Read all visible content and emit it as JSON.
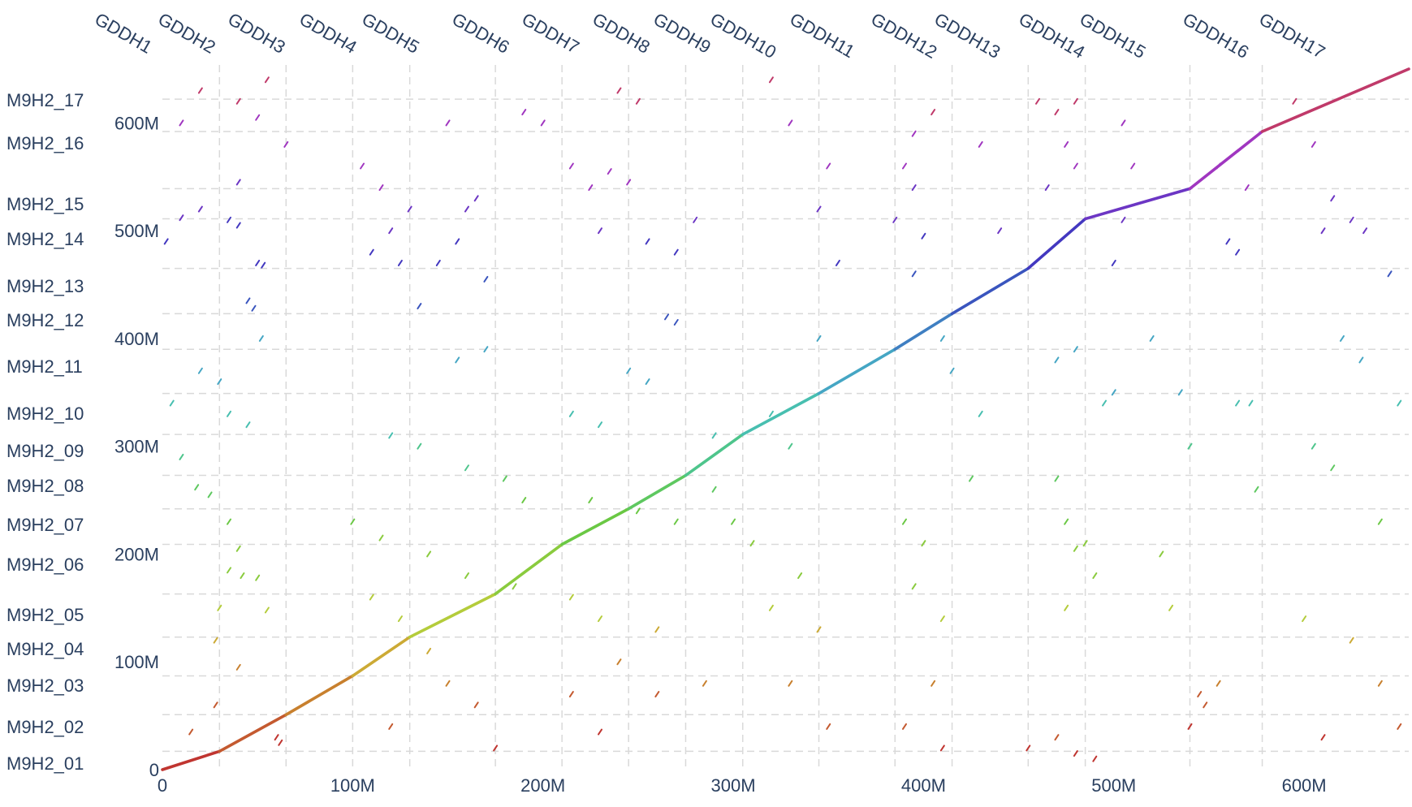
{
  "chart_data": {
    "type": "scatter",
    "x_tick_labels": [
      "0",
      "100M",
      "200M",
      "300M",
      "400M",
      "500M",
      "600M"
    ],
    "y_tick_labels": [
      "0",
      "100M",
      "200M",
      "300M",
      "400M",
      "500M",
      "600M"
    ],
    "x_ticks": [
      0,
      100,
      200,
      300,
      400,
      500,
      600
    ],
    "y_ticks": [
      0,
      100,
      200,
      300,
      400,
      500,
      600
    ],
    "xlim": [
      0,
      655
    ],
    "ylim": [
      0,
      650
    ],
    "grid": true,
    "x_chromosomes": [
      {
        "name": "GDDH1",
        "start": 0
      },
      {
        "name": "GDDH2",
        "start": 30
      },
      {
        "name": "GDDH3",
        "start": 65
      },
      {
        "name": "GDDH4",
        "start": 100
      },
      {
        "name": "GDDH5",
        "start": 130
      },
      {
        "name": "GDDH6",
        "start": 175
      },
      {
        "name": "GDDH7",
        "start": 210
      },
      {
        "name": "GDDH8",
        "start": 245
      },
      {
        "name": "GDDH9",
        "start": 275
      },
      {
        "name": "GDDH10",
        "start": 305
      },
      {
        "name": "GDDH11",
        "start": 345
      },
      {
        "name": "GDDH12",
        "start": 385
      },
      {
        "name": "GDDH13",
        "start": 415
      },
      {
        "name": "GDDH14",
        "start": 455
      },
      {
        "name": "GDDH15",
        "start": 485
      },
      {
        "name": "GDDH16",
        "start": 540
      },
      {
        "name": "GDDH17",
        "start": 578
      }
    ],
    "y_chromosomes": [
      {
        "name": "M9H2_01",
        "mid": 0
      },
      {
        "name": "M9H2_02",
        "mid": 34
      },
      {
        "name": "M9H2_03",
        "mid": 72
      },
      {
        "name": "M9H2_04",
        "mid": 108
      },
      {
        "name": "M9H2_05",
        "mid": 140
      },
      {
        "name": "M9H2_06",
        "mid": 188
      },
      {
        "name": "M9H2_07",
        "mid": 223
      },
      {
        "name": "M9H2_08",
        "mid": 259
      },
      {
        "name": "M9H2_09",
        "mid": 291
      },
      {
        "name": "M9H2_10",
        "mid": 327
      },
      {
        "name": "M9H2_11",
        "mid": 370
      },
      {
        "name": "M9H2_12",
        "mid": 413
      },
      {
        "name": "M9H2_13",
        "mid": 445
      },
      {
        "name": "M9H2_14",
        "mid": 490
      },
      {
        "name": "M9H2_15",
        "mid": 523
      },
      {
        "name": "M9H2_16",
        "mid": 580
      },
      {
        "name": "M9H2_17",
        "mid": 610
      }
    ],
    "y_boundaries": [
      17,
      51,
      87,
      123,
      163,
      209,
      242,
      273,
      311,
      349,
      390,
      423,
      465,
      511,
      539,
      592,
      622
    ],
    "diagonal_segments": [
      {
        "x0": 0,
        "y0": 0,
        "x1": 30,
        "y1": 17,
        "color": "#c03530"
      },
      {
        "x0": 30,
        "y0": 17,
        "x1": 65,
        "y1": 51,
        "color": "#c45a30"
      },
      {
        "x0": 65,
        "y0": 51,
        "x1": 100,
        "y1": 87,
        "color": "#c8802e"
      },
      {
        "x0": 100,
        "y0": 87,
        "x1": 130,
        "y1": 123,
        "color": "#ccaa35"
      },
      {
        "x0": 130,
        "y0": 123,
        "x1": 175,
        "y1": 163,
        "color": "#b4cc3b"
      },
      {
        "x0": 175,
        "y0": 163,
        "x1": 210,
        "y1": 209,
        "color": "#8acb3e"
      },
      {
        "x0": 210,
        "y0": 209,
        "x1": 245,
        "y1": 242,
        "color": "#6ac844"
      },
      {
        "x0": 245,
        "y0": 242,
        "x1": 275,
        "y1": 273,
        "color": "#5ec860"
      },
      {
        "x0": 275,
        "y0": 273,
        "x1": 305,
        "y1": 311,
        "color": "#4ec58c"
      },
      {
        "x0": 305,
        "y0": 311,
        "x1": 345,
        "y1": 349,
        "color": "#48bfb0"
      },
      {
        "x0": 345,
        "y0": 349,
        "x1": 385,
        "y1": 390,
        "color": "#45a6c4"
      },
      {
        "x0": 385,
        "y0": 390,
        "x1": 415,
        "y1": 423,
        "color": "#3f7fc2"
      },
      {
        "x0": 415,
        "y0": 423,
        "x1": 455,
        "y1": 465,
        "color": "#3a55be"
      },
      {
        "x0": 455,
        "y0": 465,
        "x1": 485,
        "y1": 511,
        "color": "#4338c0"
      },
      {
        "x0": 485,
        "y0": 511,
        "x1": 540,
        "y1": 539,
        "color": "#6c36c4"
      },
      {
        "x0": 540,
        "y0": 539,
        "x1": 578,
        "y1": 592,
        "color": "#a036c0"
      },
      {
        "x0": 578,
        "y0": 592,
        "x1": 655,
        "y1": 650,
        "color": "#c03a6a"
      }
    ],
    "scatter_points": [
      [
        2,
        490,
        "#4338c0"
      ],
      [
        10,
        512,
        "#6c36c4"
      ],
      [
        20,
        520,
        "#6c36c4"
      ],
      [
        35,
        510,
        "#4338c0"
      ],
      [
        40,
        505,
        "#4338c0"
      ],
      [
        50,
        470,
        "#4338c0"
      ],
      [
        53,
        468,
        "#4338c0"
      ],
      [
        45,
        435,
        "#3a55be"
      ],
      [
        48,
        428,
        "#3a55be"
      ],
      [
        52,
        400,
        "#45a6c4"
      ],
      [
        20,
        370,
        "#45a6c4"
      ],
      [
        30,
        360,
        "#45a6c4"
      ],
      [
        5,
        340,
        "#48bfb0"
      ],
      [
        35,
        330,
        "#48bfb0"
      ],
      [
        45,
        320,
        "#48bfb0"
      ],
      [
        10,
        290,
        "#4ec58c"
      ],
      [
        18,
        262,
        "#5ec860"
      ],
      [
        25,
        255,
        "#5ec860"
      ],
      [
        35,
        230,
        "#6ac844"
      ],
      [
        40,
        205,
        "#8acb3e"
      ],
      [
        35,
        185,
        "#8acb3e"
      ],
      [
        42,
        180,
        "#8acb3e"
      ],
      [
        50,
        178,
        "#8acb3e"
      ],
      [
        30,
        150,
        "#b4cc3b"
      ],
      [
        55,
        148,
        "#b4cc3b"
      ],
      [
        28,
        120,
        "#ccaa35"
      ],
      [
        40,
        95,
        "#c8802e"
      ],
      [
        15,
        35,
        "#c45a30"
      ],
      [
        28,
        60,
        "#c45a30"
      ],
      [
        60,
        30,
        "#c03530"
      ],
      [
        62,
        25,
        "#c03530"
      ],
      [
        20,
        630,
        "#c03a6a"
      ],
      [
        40,
        620,
        "#c03a6a"
      ],
      [
        55,
        640,
        "#c03a6a"
      ],
      [
        10,
        600,
        "#a036c0"
      ],
      [
        50,
        605,
        "#a036c0"
      ],
      [
        65,
        580,
        "#a036c0"
      ],
      [
        40,
        545,
        "#6c36c4"
      ],
      [
        105,
        560,
        "#a036c0"
      ],
      [
        115,
        540,
        "#a036c0"
      ],
      [
        130,
        520,
        "#6c36c4"
      ],
      [
        150,
        600,
        "#a036c0"
      ],
      [
        160,
        520,
        "#6c36c4"
      ],
      [
        165,
        530,
        "#6c36c4"
      ],
      [
        145,
        470,
        "#4338c0"
      ],
      [
        155,
        490,
        "#4338c0"
      ],
      [
        170,
        455,
        "#3a55be"
      ],
      [
        110,
        480,
        "#4338c0"
      ],
      [
        120,
        500,
        "#6c36c4"
      ],
      [
        125,
        470,
        "#4338c0"
      ],
      [
        135,
        430,
        "#3a55be"
      ],
      [
        155,
        380,
        "#45a6c4"
      ],
      [
        170,
        390,
        "#45a6c4"
      ],
      [
        120,
        310,
        "#48bfb0"
      ],
      [
        135,
        300,
        "#4ec58c"
      ],
      [
        160,
        280,
        "#4ec58c"
      ],
      [
        180,
        270,
        "#5ec860"
      ],
      [
        190,
        250,
        "#6ac844"
      ],
      [
        100,
        230,
        "#6ac844"
      ],
      [
        115,
        215,
        "#8acb3e"
      ],
      [
        140,
        200,
        "#8acb3e"
      ],
      [
        160,
        180,
        "#8acb3e"
      ],
      [
        185,
        170,
        "#8acb3e"
      ],
      [
        110,
        160,
        "#b4cc3b"
      ],
      [
        125,
        140,
        "#b4cc3b"
      ],
      [
        140,
        110,
        "#ccaa35"
      ],
      [
        150,
        80,
        "#c8802e"
      ],
      [
        165,
        60,
        "#c45a30"
      ],
      [
        175,
        20,
        "#c03530"
      ],
      [
        120,
        40,
        "#c45a30"
      ],
      [
        200,
        600,
        "#a036c0"
      ],
      [
        190,
        610,
        "#a036c0"
      ],
      [
        215,
        560,
        "#a036c0"
      ],
      [
        225,
        540,
        "#a036c0"
      ],
      [
        235,
        555,
        "#a036c0"
      ],
      [
        245,
        545,
        "#a036c0"
      ],
      [
        240,
        630,
        "#c03a6a"
      ],
      [
        250,
        620,
        "#c03a6a"
      ],
      [
        230,
        500,
        "#6c36c4"
      ],
      [
        255,
        490,
        "#4338c0"
      ],
      [
        270,
        480,
        "#4338c0"
      ],
      [
        265,
        420,
        "#3a55be"
      ],
      [
        270,
        415,
        "#3a55be"
      ],
      [
        255,
        360,
        "#45a6c4"
      ],
      [
        245,
        370,
        "#45a6c4"
      ],
      [
        215,
        330,
        "#48bfb0"
      ],
      [
        230,
        320,
        "#48bfb0"
      ],
      [
        225,
        250,
        "#6ac844"
      ],
      [
        250,
        240,
        "#6ac844"
      ],
      [
        270,
        230,
        "#6ac844"
      ],
      [
        290,
        260,
        "#5ec860"
      ],
      [
        215,
        160,
        "#b4cc3b"
      ],
      [
        230,
        140,
        "#b4cc3b"
      ],
      [
        260,
        130,
        "#ccaa35"
      ],
      [
        240,
        100,
        "#c8802e"
      ],
      [
        215,
        70,
        "#c45a30"
      ],
      [
        260,
        70,
        "#c45a30"
      ],
      [
        285,
        80,
        "#c8802e"
      ],
      [
        230,
        35,
        "#c03530"
      ],
      [
        300,
        230,
        "#6ac844"
      ],
      [
        290,
        310,
        "#48bfb0"
      ],
      [
        280,
        510,
        "#6c36c4"
      ],
      [
        320,
        640,
        "#c03a6a"
      ],
      [
        330,
        600,
        "#a036c0"
      ],
      [
        350,
        560,
        "#a036c0"
      ],
      [
        345,
        520,
        "#6c36c4"
      ],
      [
        355,
        470,
        "#4338c0"
      ],
      [
        345,
        400,
        "#45a6c4"
      ],
      [
        320,
        330,
        "#48bfb0"
      ],
      [
        330,
        300,
        "#4ec58c"
      ],
      [
        310,
        210,
        "#8acb3e"
      ],
      [
        335,
        180,
        "#8acb3e"
      ],
      [
        320,
        150,
        "#b4cc3b"
      ],
      [
        345,
        130,
        "#ccaa35"
      ],
      [
        330,
        80,
        "#c8802e"
      ],
      [
        350,
        40,
        "#c45a30"
      ],
      [
        395,
        590,
        "#a036c0"
      ],
      [
        405,
        610,
        "#c03a6a"
      ],
      [
        390,
        560,
        "#a036c0"
      ],
      [
        395,
        540,
        "#6c36c4"
      ],
      [
        385,
        510,
        "#6c36c4"
      ],
      [
        400,
        495,
        "#4338c0"
      ],
      [
        395,
        460,
        "#3a55be"
      ],
      [
        410,
        400,
        "#45a6c4"
      ],
      [
        415,
        370,
        "#45a6c4"
      ],
      [
        430,
        330,
        "#48bfb0"
      ],
      [
        390,
        230,
        "#6ac844"
      ],
      [
        400,
        210,
        "#8acb3e"
      ],
      [
        395,
        170,
        "#8acb3e"
      ],
      [
        410,
        140,
        "#b4cc3b"
      ],
      [
        405,
        80,
        "#c8802e"
      ],
      [
        390,
        40,
        "#c45a30"
      ],
      [
        410,
        20,
        "#c03530"
      ],
      [
        430,
        580,
        "#a036c0"
      ],
      [
        440,
        500,
        "#6c36c4"
      ],
      [
        425,
        270,
        "#5ec860"
      ],
      [
        460,
        620,
        "#c03a6a"
      ],
      [
        470,
        610,
        "#c03a6a"
      ],
      [
        480,
        620,
        "#c03a6a"
      ],
      [
        475,
        580,
        "#a036c0"
      ],
      [
        480,
        560,
        "#a036c0"
      ],
      [
        465,
        540,
        "#6c36c4"
      ],
      [
        470,
        380,
        "#45a6c4"
      ],
      [
        480,
        390,
        "#45a6c4"
      ],
      [
        470,
        270,
        "#5ec860"
      ],
      [
        475,
        230,
        "#6ac844"
      ],
      [
        485,
        210,
        "#8acb3e"
      ],
      [
        480,
        205,
        "#8acb3e"
      ],
      [
        490,
        180,
        "#8acb3e"
      ],
      [
        475,
        150,
        "#b4cc3b"
      ],
      [
        470,
        30,
        "#c45a30"
      ],
      [
        480,
        15,
        "#c03530"
      ],
      [
        490,
        10,
        "#c03530"
      ],
      [
        455,
        20,
        "#c03530"
      ],
      [
        495,
        340,
        "#48bfb0"
      ],
      [
        500,
        350,
        "#45a6c4"
      ],
      [
        505,
        600,
        "#a036c0"
      ],
      [
        510,
        560,
        "#a036c0"
      ],
      [
        505,
        510,
        "#6c36c4"
      ],
      [
        500,
        470,
        "#4338c0"
      ],
      [
        520,
        400,
        "#45a6c4"
      ],
      [
        535,
        350,
        "#45a6c4"
      ],
      [
        540,
        300,
        "#4ec58c"
      ],
      [
        525,
        200,
        "#8acb3e"
      ],
      [
        530,
        150,
        "#b4cc3b"
      ],
      [
        545,
        70,
        "#c45a30"
      ],
      [
        548,
        60,
        "#c45a30"
      ],
      [
        540,
        40,
        "#c03530"
      ],
      [
        555,
        80,
        "#c8802e"
      ],
      [
        560,
        490,
        "#4338c0"
      ],
      [
        565,
        480,
        "#4338c0"
      ],
      [
        570,
        540,
        "#a036c0"
      ],
      [
        555,
        560,
        "#a036c0"
      ],
      [
        575,
        260,
        "#5ec860"
      ],
      [
        565,
        340,
        "#48bfb0"
      ],
      [
        572,
        340,
        "#48bfb0"
      ],
      [
        595,
        620,
        "#c03a6a"
      ],
      [
        605,
        580,
        "#a036c0"
      ],
      [
        610,
        500,
        "#6c36c4"
      ],
      [
        625,
        510,
        "#6c36c4"
      ],
      [
        615,
        530,
        "#6c36c4"
      ],
      [
        620,
        400,
        "#45a6c4"
      ],
      [
        630,
        380,
        "#45a6c4"
      ],
      [
        605,
        300,
        "#4ec58c"
      ],
      [
        615,
        280,
        "#5ec860"
      ],
      [
        640,
        230,
        "#6ac844"
      ],
      [
        600,
        140,
        "#b4cc3b"
      ],
      [
        625,
        120,
        "#ccaa35"
      ],
      [
        640,
        80,
        "#c8802e"
      ],
      [
        650,
        40,
        "#c45a30"
      ],
      [
        610,
        30,
        "#c03530"
      ],
      [
        645,
        460,
        "#3a55be"
      ],
      [
        650,
        340,
        "#48bfb0"
      ],
      [
        632,
        500,
        "#6c36c4"
      ]
    ]
  }
}
